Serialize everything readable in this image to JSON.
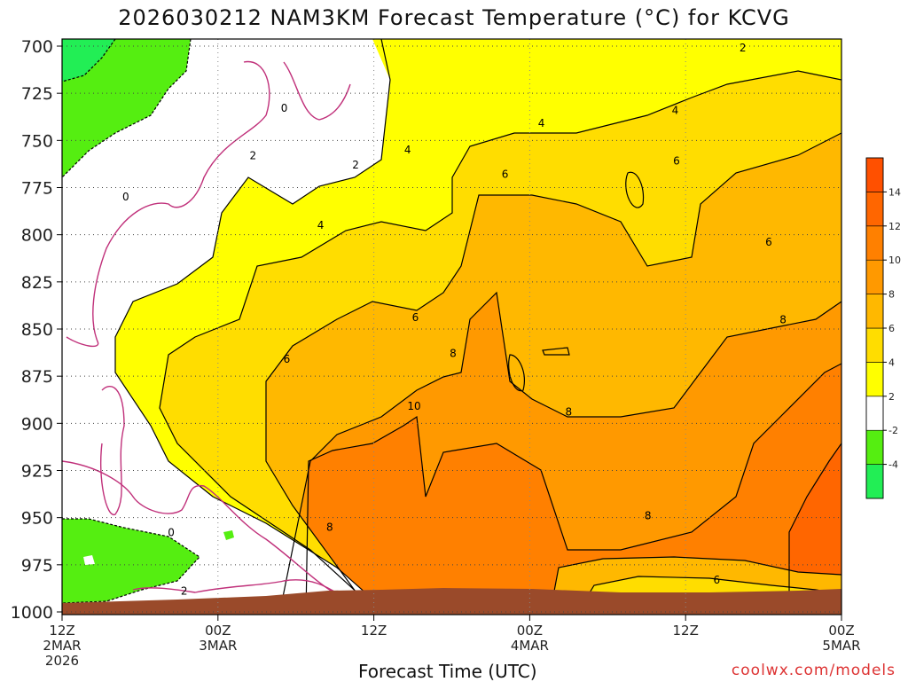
{
  "title": "2026030212 NAM3KM Forecast Temperature (°C) for KCVG",
  "credit": "coolwx.com/models",
  "chart_data": {
    "type": "heatmap",
    "title": "2026030212 NAM3KM Forecast Temperature (°C) for KCVG",
    "xlabel": "Forecast Time (UTC)",
    "ylabel": "",
    "x_ticks": [
      {
        "hour": 0,
        "lines": [
          "12Z",
          "2MAR",
          "2026"
        ]
      },
      {
        "hour": 12,
        "lines": [
          "00Z",
          "3MAR"
        ]
      },
      {
        "hour": 24,
        "lines": [
          "12Z"
        ]
      },
      {
        "hour": 36,
        "lines": [
          "00Z",
          "4MAR"
        ]
      },
      {
        "hour": 48,
        "lines": [
          "12Z"
        ]
      },
      {
        "hour": 60,
        "lines": [
          "00Z",
          "5MAR"
        ]
      }
    ],
    "x_range_hours": [
      0,
      60
    ],
    "y_levels_hpa": [
      700,
      725,
      750,
      775,
      800,
      825,
      850,
      875,
      900,
      925,
      950,
      975,
      1000
    ],
    "y_range_hpa": [
      700,
      1000
    ],
    "grid": true,
    "colorbar": {
      "labels": [
        "-4",
        "-2",
        "2",
        "4",
        "6",
        "8",
        "10",
        "12",
        "14"
      ],
      "bins": [
        {
          "min": -6,
          "max": -4,
          "color": "#22ee55"
        },
        {
          "min": -4,
          "max": -2,
          "color": "#55ee11"
        },
        {
          "min": -2,
          "max": 2,
          "color": "#ffffff"
        },
        {
          "min": 2,
          "max": 4,
          "color": "#ffff00"
        },
        {
          "min": 4,
          "max": 6,
          "color": "#ffdd00"
        },
        {
          "min": 6,
          "max": 8,
          "color": "#ffb800"
        },
        {
          "min": 8,
          "max": 10,
          "color": "#ff9900"
        },
        {
          "min": 10,
          "max": 12,
          "color": "#ff8000"
        },
        {
          "min": 12,
          "max": 14,
          "color": "#ff6600"
        },
        {
          "min": 14,
          "max": 16,
          "color": "#ff5000"
        }
      ]
    },
    "contour_labels": [
      {
        "text": "0",
        "hour": 17.1,
        "hpa": 733
      },
      {
        "text": "0",
        "hour": 4.9,
        "hpa": 780
      },
      {
        "text": "0",
        "hour": 8.4,
        "hpa": 958
      },
      {
        "text": "2",
        "hour": 14.7,
        "hpa": 758
      },
      {
        "text": "2",
        "hour": 22.6,
        "hpa": 763
      },
      {
        "text": "2",
        "hour": 9.4,
        "hpa": 989
      },
      {
        "text": "2",
        "hour": 52.4,
        "hpa": 701
      },
      {
        "text": "4",
        "hour": 36.9,
        "hpa": 741
      },
      {
        "text": "4",
        "hour": 26.6,
        "hpa": 755
      },
      {
        "text": "4",
        "hour": 19.9,
        "hpa": 795
      },
      {
        "text": "4",
        "hour": 47.2,
        "hpa": 734
      },
      {
        "text": "6",
        "hour": 34.1,
        "hpa": 768
      },
      {
        "text": "6",
        "hour": 47.3,
        "hpa": 761
      },
      {
        "text": "6",
        "hour": 54.4,
        "hpa": 804
      },
      {
        "text": "6",
        "hour": 17.3,
        "hpa": 866
      },
      {
        "text": "6",
        "hour": 27.2,
        "hpa": 844
      },
      {
        "text": "6",
        "hour": 50.4,
        "hpa": 983
      },
      {
        "text": "8",
        "hour": 30.1,
        "hpa": 863
      },
      {
        "text": "8",
        "hour": 39.0,
        "hpa": 894
      },
      {
        "text": "8",
        "hour": 55.5,
        "hpa": 845
      },
      {
        "text": "8",
        "hour": 20.6,
        "hpa": 955
      },
      {
        "text": "8",
        "hour": 45.1,
        "hpa": 949
      },
      {
        "text": "10",
        "hour": 27.1,
        "hpa": 891
      }
    ]
  }
}
